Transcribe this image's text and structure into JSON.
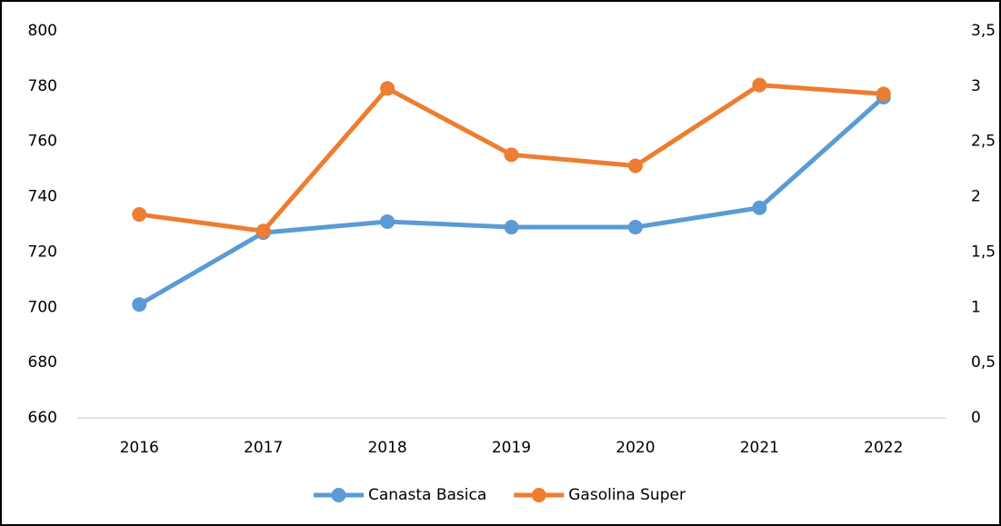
{
  "chart_data": {
    "type": "line",
    "categories": [
      "2016",
      "2017",
      "2018",
      "2019",
      "2020",
      "2021",
      "2022"
    ],
    "series": [
      {
        "name": "Canasta Basica",
        "color": "#5b9bd5",
        "values": [
          701,
          727,
          731,
          729,
          729,
          736,
          776
        ]
      },
      {
        "name": "Gasolina Super",
        "color": "#ed7d31",
        "axis": "y2",
        "values": [
          1.84,
          1.69,
          2.98,
          2.38,
          2.28,
          3.01,
          2.93
        ]
      }
    ],
    "ylim": [
      660,
      800
    ],
    "yticks": [
      660,
      680,
      700,
      720,
      740,
      760,
      780,
      800
    ],
    "y2lim": [
      0,
      3.5
    ],
    "y2ticks": [
      0,
      {
        "value": 0.5,
        "label": "0,5"
      },
      1,
      {
        "value": 1.5,
        "label": "1,5"
      },
      2,
      {
        "value": 2.5,
        "label": "2,5"
      },
      3,
      {
        "value": 3.5,
        "label": "3,5"
      }
    ],
    "grid": false,
    "legend": "bottom"
  }
}
